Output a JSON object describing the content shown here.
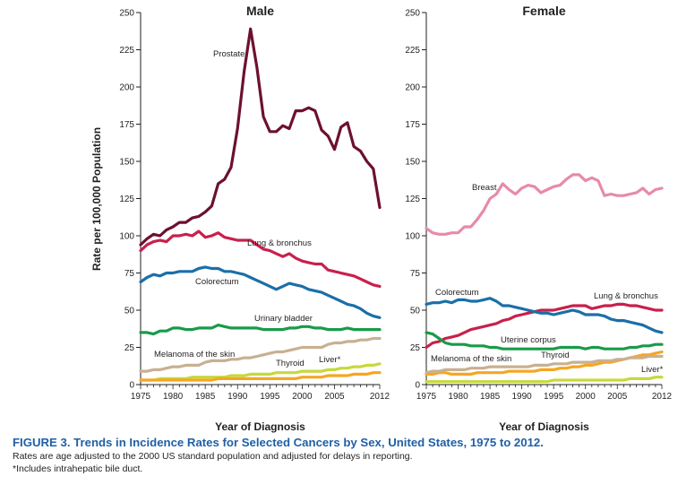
{
  "figure": {
    "title": "FIGURE 3. Trends in Incidence Rates for Selected Cancers by Sex, United States, 1975 to 2012.",
    "notes": [
      "Rates are age adjusted to the 2000 US standard population and adjusted for delays in reporting.",
      "*Includes intrahepatic bile duct."
    ]
  },
  "chart_data": [
    {
      "type": "line",
      "title": "Male",
      "xlabel": "Year of Diagnosis",
      "ylabel": "Rate per 100,000 Population",
      "xlim": [
        1975,
        2012
      ],
      "ylim": [
        0,
        250
      ],
      "x_ticks": [
        1975,
        1980,
        1985,
        1990,
        1995,
        2000,
        2005,
        2012
      ],
      "y_ticks": [
        0,
        25,
        50,
        75,
        100,
        125,
        150,
        175,
        200,
        225,
        250
      ],
      "grid": false,
      "x": [
        1975,
        1976,
        1977,
        1978,
        1979,
        1980,
        1981,
        1982,
        1983,
        1984,
        1985,
        1986,
        1987,
        1988,
        1989,
        1990,
        1991,
        1992,
        1993,
        1994,
        1995,
        1996,
        1997,
        1998,
        1999,
        2000,
        2001,
        2002,
        2003,
        2004,
        2005,
        2006,
        2007,
        2008,
        2009,
        2010,
        2011,
        2012
      ],
      "series": [
        {
          "name": "Prostate",
          "color": "#6d1030",
          "values": [
            94,
            98,
            101,
            100,
            104,
            106,
            109,
            109,
            112,
            113,
            116,
            120,
            135,
            138,
            146,
            172,
            210,
            239,
            213,
            180,
            170,
            170,
            174,
            172,
            184,
            184,
            186,
            184,
            171,
            167,
            158,
            173,
            176,
            160,
            157,
            150,
            145,
            119
          ]
        },
        {
          "name": "Lung & bronchus",
          "color": "#c8204c",
          "values": [
            90,
            94,
            96,
            97,
            96,
            100,
            100,
            101,
            100,
            103,
            99,
            100,
            102,
            99,
            98,
            97,
            97,
            97,
            94,
            91,
            90,
            88,
            86,
            88,
            85,
            83,
            82,
            81,
            81,
            77,
            76,
            75,
            74,
            73,
            71,
            69,
            67,
            66
          ]
        },
        {
          "name": "Colorectum",
          "color": "#1a6fa8",
          "values": [
            69,
            72,
            74,
            73,
            75,
            75,
            76,
            76,
            76,
            78,
            79,
            78,
            78,
            76,
            76,
            75,
            74,
            72,
            70,
            68,
            66,
            64,
            66,
            68,
            67,
            66,
            64,
            63,
            62,
            60,
            58,
            56,
            54,
            53,
            51,
            48,
            46,
            45
          ]
        },
        {
          "name": "Urinary bladder",
          "color": "#1a9a4a",
          "values": [
            35,
            35,
            34,
            36,
            36,
            38,
            38,
            37,
            37,
            38,
            38,
            38,
            40,
            39,
            38,
            38,
            38,
            38,
            38,
            37,
            37,
            37,
            37,
            38,
            38,
            39,
            39,
            38,
            38,
            37,
            37,
            37,
            38,
            37,
            37,
            37,
            37,
            37
          ]
        },
        {
          "name": "Melanoma of the skin",
          "color": "#c8b091",
          "values": [
            9,
            9,
            10,
            10,
            11,
            12,
            12,
            13,
            13,
            13,
            15,
            16,
            16,
            16,
            17,
            17,
            18,
            18,
            19,
            20,
            21,
            22,
            22,
            23,
            24,
            25,
            25,
            25,
            25,
            27,
            28,
            28,
            29,
            29,
            30,
            30,
            31,
            31
          ]
        },
        {
          "name": "Liver*",
          "color": "#c6d93a",
          "values": [
            3,
            3,
            3,
            4,
            4,
            4,
            4,
            4,
            5,
            5,
            5,
            5,
            5,
            5,
            6,
            6,
            6,
            7,
            7,
            7,
            7,
            8,
            8,
            8,
            8,
            9,
            9,
            9,
            9,
            10,
            10,
            11,
            11,
            12,
            12,
            13,
            13,
            14
          ]
        },
        {
          "name": "Thyroid",
          "color": "#f5a623",
          "values": [
            3,
            3,
            3,
            3,
            3,
            3,
            3,
            3,
            3,
            3,
            3,
            3,
            4,
            4,
            4,
            4,
            4,
            4,
            4,
            4,
            4,
            4,
            4,
            4,
            4,
            5,
            5,
            5,
            5,
            6,
            6,
            6,
            6,
            7,
            7,
            7,
            8,
            8
          ]
        }
      ],
      "series_labels": [
        "Prostate",
        "Lung & bronchus",
        "Colorectum",
        "Urinary bladder",
        "Melanoma of the skin",
        "Thyroid",
        "Liver*"
      ]
    },
    {
      "type": "line",
      "title": "Female",
      "xlabel": "Year of Diagnosis",
      "ylabel": "",
      "xlim": [
        1975,
        2012
      ],
      "ylim": [
        0,
        250
      ],
      "x_ticks": [
        1975,
        1980,
        1985,
        1990,
        1995,
        2000,
        2005,
        2012
      ],
      "y_ticks": [
        0,
        25,
        50,
        75,
        100,
        125,
        150,
        175,
        200,
        225,
        250
      ],
      "grid": false,
      "x": [
        1975,
        1976,
        1977,
        1978,
        1979,
        1980,
        1981,
        1982,
        1983,
        1984,
        1985,
        1986,
        1987,
        1988,
        1989,
        1990,
        1991,
        1992,
        1993,
        1994,
        1995,
        1996,
        1997,
        1998,
        1999,
        2000,
        2001,
        2002,
        2003,
        2004,
        2005,
        2006,
        2007,
        2008,
        2009,
        2010,
        2011,
        2012
      ],
      "series": [
        {
          "name": "Breast",
          "color": "#e88aa9",
          "values": [
            105,
            102,
            101,
            101,
            102,
            102,
            106,
            106,
            111,
            117,
            125,
            128,
            135,
            131,
            128,
            132,
            134,
            133,
            129,
            131,
            133,
            134,
            138,
            141,
            141,
            137,
            139,
            137,
            127,
            128,
            127,
            127,
            128,
            129,
            132,
            128,
            131,
            132
          ]
        },
        {
          "name": "Lung & bronchus",
          "color": "#c8204c",
          "values": [
            25,
            28,
            29,
            31,
            32,
            33,
            35,
            37,
            38,
            39,
            40,
            41,
            43,
            44,
            46,
            47,
            48,
            49,
            50,
            50,
            50,
            51,
            52,
            53,
            53,
            53,
            51,
            52,
            53,
            53,
            54,
            54,
            53,
            53,
            52,
            51,
            50,
            50
          ]
        },
        {
          "name": "Colorectum",
          "color": "#1a6fa8",
          "values": [
            54,
            55,
            55,
            56,
            55,
            57,
            57,
            56,
            56,
            57,
            58,
            56,
            53,
            53,
            52,
            51,
            50,
            49,
            48,
            48,
            47,
            48,
            49,
            50,
            49,
            47,
            47,
            47,
            46,
            44,
            43,
            43,
            42,
            41,
            40,
            38,
            36,
            35
          ]
        },
        {
          "name": "Uterine corpus",
          "color": "#1a9a4a",
          "values": [
            35,
            34,
            31,
            28,
            27,
            27,
            27,
            26,
            26,
            26,
            25,
            25,
            24,
            24,
            24,
            24,
            24,
            24,
            24,
            24,
            24,
            25,
            25,
            25,
            25,
            24,
            25,
            25,
            24,
            24,
            24,
            24,
            25,
            25,
            26,
            26,
            27,
            27
          ]
        },
        {
          "name": "Thyroid",
          "color": "#f5a623",
          "values": [
            7,
            7,
            8,
            8,
            7,
            7,
            7,
            7,
            8,
            8,
            8,
            8,
            8,
            9,
            9,
            9,
            9,
            9,
            10,
            10,
            10,
            11,
            11,
            12,
            12,
            13,
            13,
            14,
            15,
            15,
            16,
            17,
            18,
            19,
            20,
            20,
            21,
            22
          ]
        },
        {
          "name": "Melanoma of the skin",
          "color": "#c8b091",
          "values": [
            8,
            9,
            9,
            10,
            10,
            10,
            10,
            11,
            11,
            11,
            12,
            12,
            12,
            12,
            12,
            12,
            12,
            13,
            13,
            13,
            14,
            14,
            14,
            15,
            15,
            15,
            15,
            16,
            16,
            16,
            17,
            17,
            18,
            18,
            18,
            19,
            19,
            19
          ]
        },
        {
          "name": "Liver*",
          "color": "#c6d93a",
          "values": [
            2,
            2,
            2,
            2,
            2,
            2,
            2,
            2,
            2,
            2,
            2,
            2,
            2,
            2,
            2,
            2,
            2,
            2,
            2,
            2,
            3,
            3,
            3,
            3,
            3,
            3,
            3,
            3,
            3,
            3,
            3,
            3,
            4,
            4,
            4,
            4,
            5,
            5
          ]
        }
      ],
      "series_labels": [
        "Breast",
        "Colorectum",
        "Lung & bronchus",
        "Uterine corpus",
        "Melanoma of the skin",
        "Thyroid",
        "Liver*"
      ]
    }
  ]
}
